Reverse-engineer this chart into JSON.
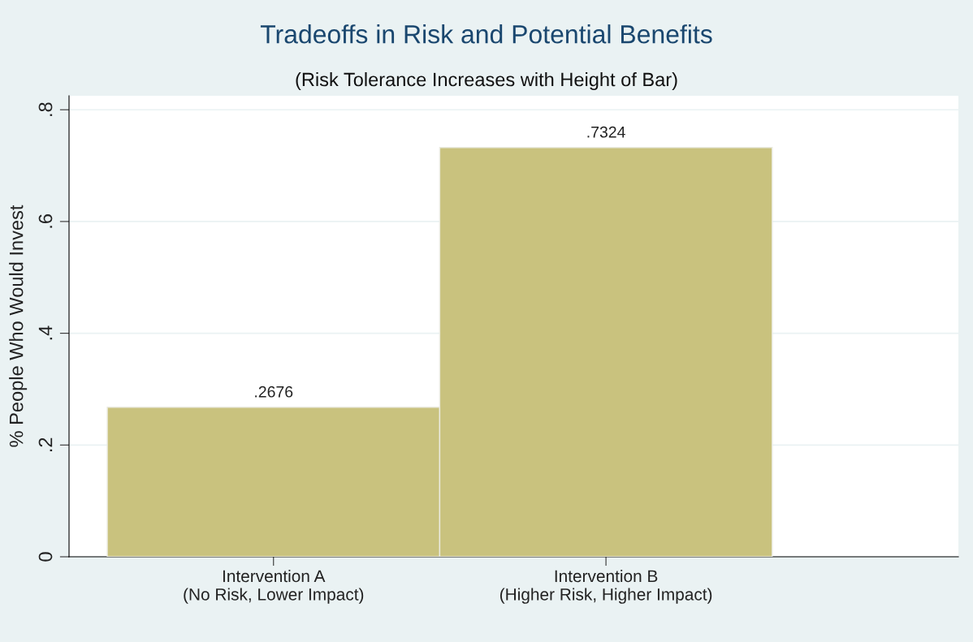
{
  "chart_data": {
    "type": "bar",
    "title": "Tradeoffs in Risk and Potential Benefits",
    "subtitle": "(Risk Tolerance Increases with Height of Bar)",
    "ylabel": "% People Who Would Invest",
    "categories": [
      "Intervention A\n(No Risk, Lower Impact)",
      "Intervention B\n(Higher Risk, Higher Impact)"
    ],
    "values": [
      0.2676,
      0.7324
    ],
    "color": "#c9c27e",
    "value_labels": [
      ".2676",
      ".7324"
    ],
    "ylim": [
      0,
      0.825
    ],
    "yticks": [
      {
        "value": 0,
        "label": "0"
      },
      {
        "value": 0.2,
        "label": ".2"
      },
      {
        "value": 0.4,
        "label": ".4"
      },
      {
        "value": 0.6,
        "label": ".6"
      },
      {
        "value": 0.8,
        "label": ".8"
      }
    ],
    "grid": "y",
    "legend": false
  }
}
